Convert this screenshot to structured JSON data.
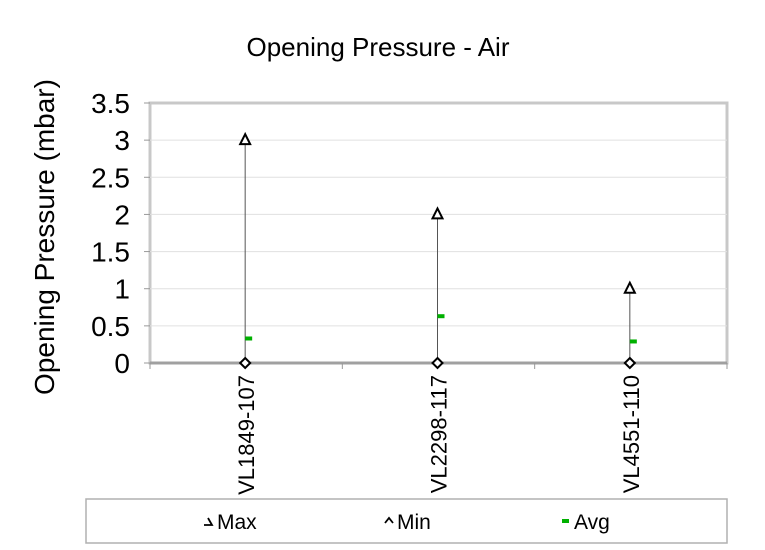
{
  "chart_data": {
    "type": "scatter",
    "title": "Opening Pressure - Air",
    "xlabel": "",
    "ylabel": "Opening Pressure (mbar)",
    "ylim": [
      0,
      3.5
    ],
    "yticks": [
      "3.5",
      "3",
      "2.5",
      "2",
      "1.5",
      "1",
      "0.5",
      "0"
    ],
    "categories": [
      "VL1849-107",
      "VL2298-117",
      "VL4551-110"
    ],
    "series": [
      {
        "name": "Max",
        "marker": "triangle",
        "color": "#000000",
        "values": [
          3,
          2,
          1
        ]
      },
      {
        "name": "Min",
        "marker": "diamond",
        "color": "#000000",
        "values": [
          0,
          0,
          0
        ]
      },
      {
        "name": "Avg",
        "marker": "dash",
        "color": "#00b000",
        "values": [
          0.33,
          0.63,
          0.29
        ]
      }
    ],
    "grid": true,
    "legend_position": "bottom"
  }
}
